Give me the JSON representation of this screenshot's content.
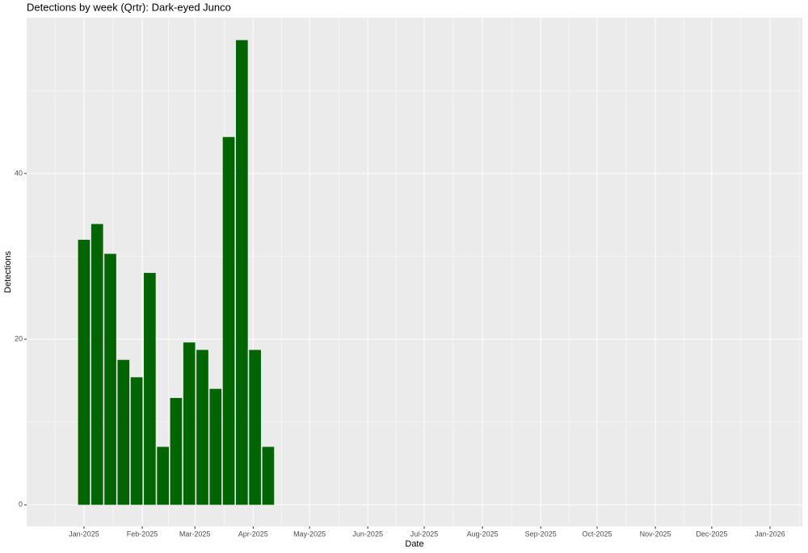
{
  "chart_data": {
    "type": "bar",
    "title": "Detections by week (Qrtr): Dark-eyed Junco",
    "x_label": "Date",
    "y_label": "Detections",
    "x": [
      0,
      7,
      14,
      21,
      28,
      35,
      42,
      49,
      56,
      63,
      70,
      77,
      84,
      91,
      98
    ],
    "values": [
      32.0,
      33.9,
      30.3,
      17.5,
      15.4,
      28.0,
      7.0,
      12.9,
      19.6,
      18.7,
      14.0,
      44.4,
      56.1,
      18.7,
      7.0
    ],
    "bar_width": 6.3,
    "color": "#006400",
    "xlim": [
      -30.5,
      382.2
    ],
    "xticks": [
      {
        "value": 0,
        "label": "Jan-2025"
      },
      {
        "value": 31,
        "label": "Feb-2025"
      },
      {
        "value": 59,
        "label": "Mar-2025"
      },
      {
        "value": 90,
        "label": "Apr-2025"
      },
      {
        "value": 120,
        "label": "May-2025"
      },
      {
        "value": 151,
        "label": "Jun-2025"
      },
      {
        "value": 181,
        "label": "Jul-2025"
      },
      {
        "value": 212,
        "label": "Aug-2025"
      },
      {
        "value": 243,
        "label": "Sep-2025"
      },
      {
        "value": 273,
        "label": "Oct-2025"
      },
      {
        "value": 304,
        "label": "Nov-2025"
      },
      {
        "value": 334,
        "label": "Dec-2025"
      },
      {
        "value": 365,
        "label": "Jan-2026"
      }
    ],
    "ylim": [
      -2.6,
      58.8
    ],
    "yticks": [
      0,
      20,
      40
    ],
    "grid": true
  }
}
